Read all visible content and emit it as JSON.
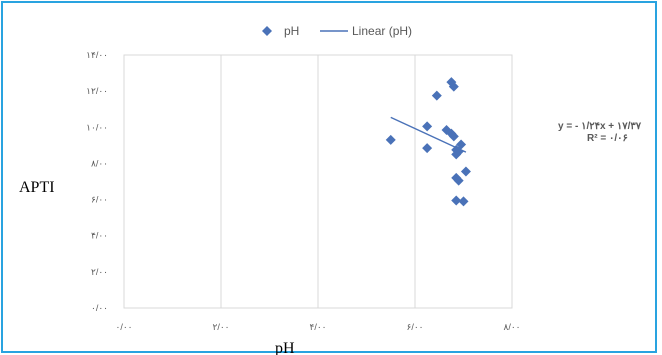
{
  "chart_data": {
    "type": "scatter",
    "xlabel": "pH",
    "ylabel": "APTI",
    "xlim": [
      0,
      8
    ],
    "ylim": [
      0,
      14
    ],
    "x_ticks": [
      0,
      2,
      4,
      6,
      8
    ],
    "y_ticks": [
      0,
      2,
      4,
      6,
      8,
      10,
      12,
      14
    ],
    "x_tick_labels": [
      "۰/۰۰",
      "۲/۰۰",
      "۴/۰۰",
      "۶/۰۰",
      "۸/۰۰"
    ],
    "y_tick_labels": [
      "۰/۰۰",
      "۲/۰۰",
      "۴/۰۰",
      "۶/۰۰",
      "۸/۰۰",
      "۱۰/۰۰",
      "۱۲/۰۰",
      "۱۴/۰۰"
    ],
    "grid": "vertical",
    "legend_position": "top",
    "series": [
      {
        "name": "pH",
        "marker": "diamond",
        "color": "#4a72b8",
        "points": [
          {
            "x": 5.5,
            "y": 9.3
          },
          {
            "x": 6.25,
            "y": 10.05
          },
          {
            "x": 6.25,
            "y": 8.85
          },
          {
            "x": 6.45,
            "y": 11.75
          },
          {
            "x": 6.65,
            "y": 9.85
          },
          {
            "x": 6.75,
            "y": 9.65
          },
          {
            "x": 6.75,
            "y": 12.5
          },
          {
            "x": 6.8,
            "y": 12.25
          },
          {
            "x": 6.8,
            "y": 9.5
          },
          {
            "x": 6.85,
            "y": 8.75
          },
          {
            "x": 6.85,
            "y": 8.5
          },
          {
            "x": 6.9,
            "y": 8.65
          },
          {
            "x": 6.95,
            "y": 9.05
          },
          {
            "x": 6.85,
            "y": 7.2
          },
          {
            "x": 6.9,
            "y": 7.05
          },
          {
            "x": 7.05,
            "y": 7.55
          },
          {
            "x": 6.85,
            "y": 5.95
          },
          {
            "x": 7.0,
            "y": 5.9
          }
        ]
      },
      {
        "name": "Linear (pH)",
        "kind": "trendline",
        "color": "#4a72b8",
        "slope": -1.24,
        "intercept": 17.37,
        "x_range": [
          5.5,
          7.05
        ]
      }
    ],
    "trendline_equation": "y = - ۱/۲۴x + ۱۷/۳۷",
    "r_squared_label": "R² = ۰/۰۶"
  }
}
